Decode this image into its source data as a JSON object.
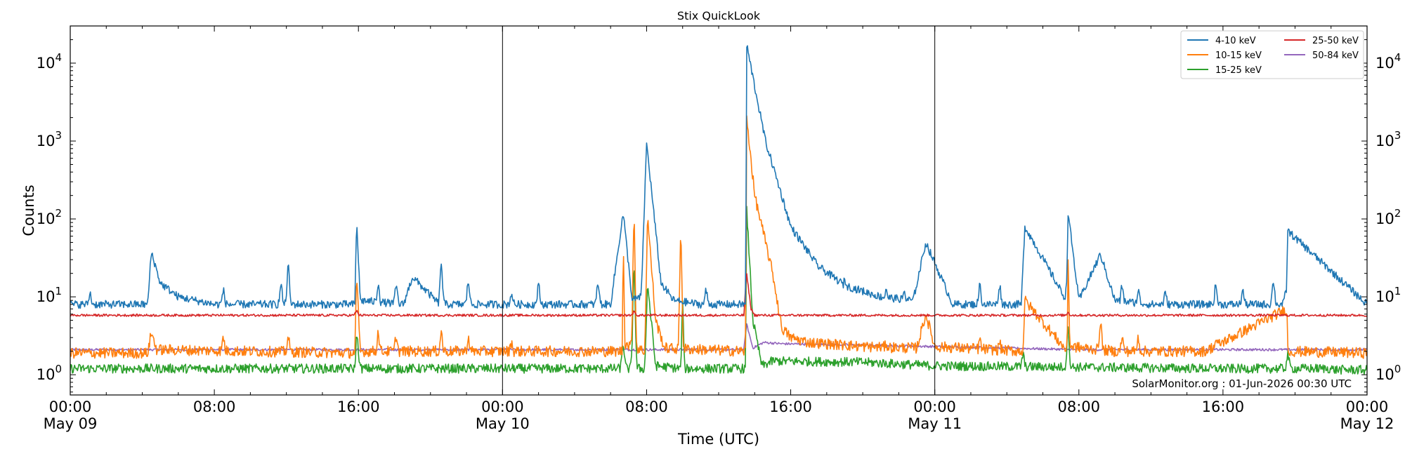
{
  "chart_data": {
    "type": "line",
    "title": "Stix QuickLook",
    "xlabel": "Time (UTC)",
    "ylabel": "Counts",
    "yscale": "log",
    "xlim_hours": [
      0,
      72
    ],
    "ylim": [
      0.55,
      30000
    ],
    "y_ticks": [
      1,
      10,
      100,
      1000,
      10000
    ],
    "y_tick_labels": [
      {
        "base": "10",
        "exp": "0"
      },
      {
        "base": "10",
        "exp": "1"
      },
      {
        "base": "10",
        "exp": "2"
      },
      {
        "base": "10",
        "exp": "3"
      },
      {
        "base": "10",
        "exp": "4"
      }
    ],
    "x_ticks": [
      {
        "hour": 0,
        "time": "00:00",
        "date": "May 09"
      },
      {
        "hour": 8,
        "time": "08:00",
        "date": ""
      },
      {
        "hour": 16,
        "time": "16:00",
        "date": ""
      },
      {
        "hour": 24,
        "time": "00:00",
        "date": "May 10"
      },
      {
        "hour": 32,
        "time": "08:00",
        "date": ""
      },
      {
        "hour": 40,
        "time": "16:00",
        "date": ""
      },
      {
        "hour": 48,
        "time": "00:00",
        "date": "May 11"
      },
      {
        "hour": 56,
        "time": "08:00",
        "date": ""
      },
      {
        "hour": 64,
        "time": "16:00",
        "date": ""
      },
      {
        "hour": 72,
        "time": "00:00",
        "date": "May 12"
      }
    ],
    "day_boundaries_hours": [
      24,
      48
    ],
    "legend_position": "top-right",
    "credit": "SolarMonitor.org : 01-Jun-2026 00:30 UTC",
    "series": [
      {
        "name": "4-10 keV",
        "color": "#1f77b4",
        "x": [
          0,
          4.3,
          4.5,
          5,
          6,
          8,
          12,
          15.8,
          15.9,
          16.1,
          18.5,
          19,
          20.5,
          22,
          24,
          27.2,
          30,
          30.7,
          31.2,
          31.7,
          32,
          32.8,
          33.5,
          35,
          37.5,
          37.55,
          38,
          38.6,
          39.5,
          40,
          41.5,
          43,
          45,
          46.8,
          47.5,
          49,
          52.8,
          53,
          55.3,
          55.4,
          56,
          57.2,
          58,
          60,
          63,
          67.5,
          67.6,
          72
        ],
        "y": [
          8,
          8,
          38,
          15,
          10,
          8,
          8,
          8,
          100,
          9,
          8,
          18,
          8,
          8,
          8,
          8,
          8,
          120,
          9,
          10,
          950,
          15,
          9,
          8,
          8,
          17500,
          5000,
          1000,
          200,
          80,
          25,
          14,
          10,
          9,
          50,
          8,
          8,
          80,
          9,
          120,
          9,
          35,
          9,
          8,
          8,
          8,
          70,
          8
        ],
        "baseline": 8,
        "noise": 0.05,
        "spikes": [
          [
            1.1,
            11
          ],
          [
            8.5,
            12
          ],
          [
            11.7,
            14
          ],
          [
            12.1,
            25
          ],
          [
            17.1,
            15
          ],
          [
            18.1,
            14
          ],
          [
            20.6,
            27
          ],
          [
            22.1,
            16
          ],
          [
            24.5,
            11
          ],
          [
            26,
            14
          ],
          [
            29.3,
            15
          ],
          [
            33,
            10
          ],
          [
            35.3,
            12
          ],
          [
            43,
            18
          ],
          [
            45.3,
            13
          ],
          [
            46.3,
            12
          ],
          [
            48.3,
            11
          ],
          [
            50.5,
            14
          ],
          [
            51.6,
            14
          ],
          [
            55.3,
            12
          ],
          [
            58.4,
            14
          ],
          [
            59.3,
            12
          ],
          [
            60.8,
            11
          ],
          [
            63.6,
            14
          ],
          [
            65.1,
            12
          ],
          [
            66.8,
            16
          ],
          [
            67.5,
            12
          ],
          [
            70.2,
            15
          ],
          [
            71.1,
            13
          ]
        ]
      },
      {
        "name": "10-15 keV",
        "color": "#ff7f0e",
        "x": [
          0,
          4.3,
          4.5,
          4.8,
          15.8,
          15.9,
          16.1,
          30.65,
          30.7,
          30.8,
          31.9,
          32.05,
          32.5,
          33,
          37.5,
          37.55,
          38,
          39,
          39.5,
          40,
          41,
          44,
          47,
          47.5,
          48,
          52.9,
          53,
          55.35,
          55.4,
          55.5,
          58,
          63,
          67.55,
          67.6,
          72
        ],
        "y": [
          1.9,
          1.9,
          3.5,
          2.1,
          1.9,
          18,
          2.0,
          2.0,
          60,
          2.5,
          2.0,
          110,
          5,
          2.2,
          2.0,
          2100,
          200,
          20,
          4,
          3,
          2.6,
          2.3,
          2.2,
          6,
          2.3,
          2.0,
          9,
          2.0,
          33,
          2.3,
          2.0,
          2.0,
          7,
          2.0,
          1.9
        ],
        "baseline": 1.9,
        "noise": 0.07,
        "spikes": [
          [
            8.5,
            3
          ],
          [
            12.1,
            3
          ],
          [
            17.1,
            3.5
          ],
          [
            18.1,
            3.2
          ],
          [
            20.6,
            3.5
          ],
          [
            22.1,
            3
          ],
          [
            24.5,
            2.6
          ],
          [
            31.3,
            100
          ],
          [
            33.9,
            60
          ],
          [
            38.7,
            12
          ],
          [
            43,
            2.8
          ],
          [
            45.3,
            2.6
          ],
          [
            50.5,
            2.8
          ],
          [
            51.6,
            2.6
          ],
          [
            57.2,
            5
          ],
          [
            58.4,
            3
          ],
          [
            59.3,
            3
          ],
          [
            63.6,
            2.8
          ],
          [
            67.5,
            2.8
          ]
        ]
      },
      {
        "name": "15-25 keV",
        "color": "#2ca02c",
        "x": [
          0,
          15.8,
          15.9,
          16.1,
          30.7,
          31.9,
          32.05,
          32.5,
          33.9,
          34,
          34.1,
          37.5,
          37.55,
          37.9,
          38.4,
          39,
          44,
          48,
          56,
          72
        ],
        "y": [
          1.2,
          1.2,
          3.5,
          1.2,
          1.2,
          1.2,
          15,
          1.3,
          1.2,
          10,
          1.2,
          1.2,
          140,
          5,
          1.3,
          1.5,
          1.45,
          1.3,
          1.25,
          1.15
        ],
        "baseline": 1.2,
        "noise": 0.06,
        "spikes": [
          [
            30.7,
            2.5
          ],
          [
            31.3,
            25
          ],
          [
            52.9,
            1.8
          ],
          [
            55.4,
            4
          ],
          [
            67.6,
            1.8
          ]
        ]
      },
      {
        "name": "25-50 keV",
        "color": "#d62728",
        "x": [
          0,
          37.4,
          37.5,
          37.55,
          37.8,
          38,
          72
        ],
        "y": [
          5.8,
          5.8,
          14,
          20,
          7,
          5.8,
          5.8
        ],
        "baseline": 5.8,
        "noise": 0.015,
        "spikes": [
          [
            15.9,
            6.6
          ],
          [
            31.3,
            6.4
          ],
          [
            55.4,
            6.3
          ]
        ]
      },
      {
        "name": "50-84 keV",
        "color": "#9467bd",
        "x": [
          0,
          37.4,
          37.55,
          37.9,
          38.5,
          39.5,
          44,
          48,
          52,
          56,
          72
        ],
        "y": [
          2.1,
          2.1,
          4.5,
          2.2,
          2.6,
          2.5,
          2.4,
          2.3,
          2.2,
          2.1,
          2.1
        ],
        "baseline": 2.1,
        "noise": 0.015,
        "spikes": []
      }
    ]
  }
}
